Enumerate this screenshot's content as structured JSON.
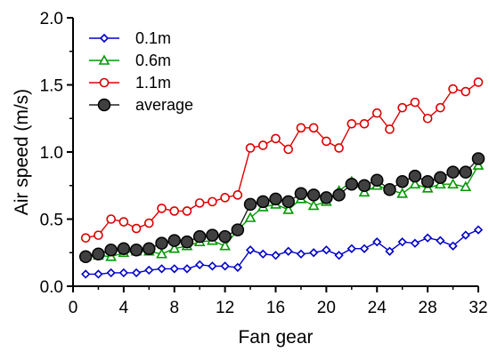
{
  "chart_data": {
    "type": "line",
    "xlabel": "Fan gear",
    "ylabel": "Air speed  (m/s)",
    "xlim": [
      0,
      32
    ],
    "ylim": [
      0,
      2.0
    ],
    "xticks": [
      "0",
      "4",
      "8",
      "12",
      "16",
      "20",
      "24",
      "28",
      "32"
    ],
    "yticks": [
      "0.0",
      "0.5",
      "1.0",
      "1.5",
      "2.0"
    ],
    "grid": false,
    "legend_position": "top-left",
    "x": [
      1,
      2,
      3,
      4,
      5,
      6,
      7,
      8,
      9,
      10,
      11,
      12,
      13,
      14,
      15,
      16,
      17,
      18,
      19,
      20,
      21,
      22,
      23,
      24,
      25,
      26,
      27,
      28,
      29,
      30,
      31,
      32
    ],
    "series": [
      {
        "name": "0.1m",
        "color": "#0000cc",
        "marker": "diamond-open",
        "values": [
          0.09,
          0.09,
          0.1,
          0.1,
          0.1,
          0.12,
          0.13,
          0.13,
          0.13,
          0.16,
          0.15,
          0.15,
          0.14,
          0.27,
          0.24,
          0.23,
          0.26,
          0.24,
          0.25,
          0.27,
          0.23,
          0.28,
          0.28,
          0.33,
          0.26,
          0.33,
          0.32,
          0.36,
          0.34,
          0.3,
          0.38,
          0.42
        ]
      },
      {
        "name": "0.6m",
        "color": "#009900",
        "marker": "triangle-open",
        "values": [
          0.22,
          0.23,
          0.22,
          0.25,
          0.26,
          0.26,
          0.24,
          0.28,
          0.3,
          0.33,
          0.34,
          0.3,
          0.42,
          0.51,
          0.59,
          0.61,
          0.57,
          0.65,
          0.6,
          0.63,
          0.71,
          0.78,
          0.7,
          0.75,
          0.72,
          0.69,
          0.76,
          0.73,
          0.76,
          0.76,
          0.74,
          0.9
        ]
      },
      {
        "name": "1.1m",
        "color": "#dd0000",
        "marker": "circle-open",
        "values": [
          0.36,
          0.38,
          0.5,
          0.48,
          0.43,
          0.47,
          0.58,
          0.56,
          0.56,
          0.62,
          0.63,
          0.66,
          0.68,
          1.03,
          1.05,
          1.1,
          1.02,
          1.18,
          1.18,
          1.08,
          1.03,
          1.21,
          1.21,
          1.29,
          1.17,
          1.33,
          1.37,
          1.25,
          1.33,
          1.47,
          1.45,
          1.52
        ]
      },
      {
        "name": "average",
        "color": "#222222",
        "marker": "circle-filled",
        "values": [
          0.22,
          0.24,
          0.27,
          0.28,
          0.27,
          0.28,
          0.32,
          0.34,
          0.33,
          0.37,
          0.38,
          0.37,
          0.42,
          0.61,
          0.63,
          0.65,
          0.63,
          0.69,
          0.68,
          0.66,
          0.68,
          0.76,
          0.75,
          0.79,
          0.72,
          0.78,
          0.82,
          0.78,
          0.81,
          0.85,
          0.85,
          0.95
        ]
      }
    ]
  }
}
